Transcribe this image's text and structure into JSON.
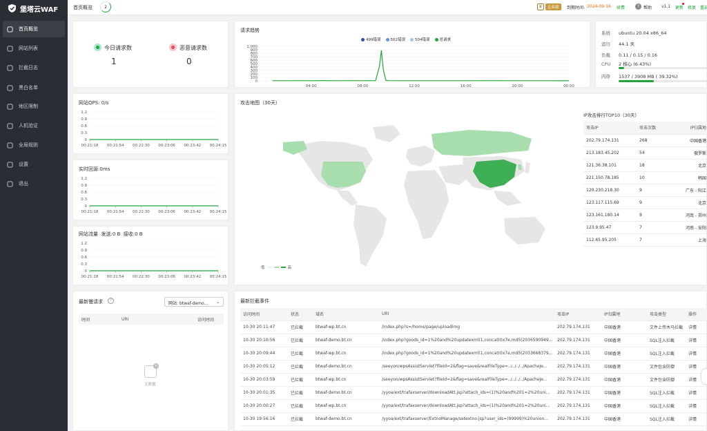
{
  "app": {
    "name": "堡塔云WAF"
  },
  "sidebar": {
    "items": [
      {
        "label": "首页概览",
        "icon": "home-icon"
      },
      {
        "label": "网站列表",
        "icon": "globe-icon"
      },
      {
        "label": "拦截日志",
        "icon": "log-icon"
      },
      {
        "label": "黑白名单",
        "icon": "user-icon"
      },
      {
        "label": "地区限制",
        "icon": "region-icon"
      },
      {
        "label": "人机验证",
        "icon": "captcha-icon"
      },
      {
        "label": "全局规则",
        "icon": "rules-icon"
      },
      {
        "label": "设置",
        "icon": "gear-icon"
      },
      {
        "label": "退出",
        "icon": "logout-icon"
      }
    ]
  },
  "topbar": {
    "page_title": "首页概览",
    "loader_value": "2",
    "edition": "企业版",
    "expire_label": "到期时间:",
    "expire_date": "2024-09-16",
    "renew": "续费",
    "help": "帮助",
    "version": "v1.1",
    "update": "更新",
    "repair": "修复",
    "restart": "重启"
  },
  "requests": {
    "today_label": "今日请求数",
    "today_value": "1",
    "malicious_label": "恶意请求数",
    "malicious_value": "0"
  },
  "trend": {
    "title": "请求趋势",
    "legend": [
      {
        "name": "499错误",
        "color": "#2f4ba8"
      },
      {
        "name": "502错误",
        "color": "#5b8ff9"
      },
      {
        "name": "504错误",
        "color": "#9fc3f0"
      },
      {
        "name": "总请求",
        "color": "#20a53a"
      }
    ]
  },
  "system": {
    "os_label": "系统",
    "os": "ubuntu 20.04 x86_64",
    "uptime_label": "运行",
    "uptime": "44.1 天",
    "load_label": "负载",
    "load": "0.11 / 0.15 / 0.16",
    "cpu_label": "CPU",
    "cpu": "2 核心 (6.43%)",
    "cpu_percent": 6.43,
    "mem_label": "内存",
    "mem": "1537 / 3908 MB ( 39.32%)",
    "mem_percent": 39.32
  },
  "qps": {
    "title": "网站QPS:",
    "value": "0/s"
  },
  "response": {
    "title": "实时回源:",
    "value": "0ms"
  },
  "traffic": {
    "title": "网站流量",
    "send_label": "发送:",
    "send": "0 B",
    "recv_label": "接收:",
    "recv": "0 B"
  },
  "mini_axis": {
    "y_ticks": [
      "1.2",
      "0.9",
      "0.6",
      "0.3",
      "0"
    ],
    "x_ticks": [
      "00:21:18",
      "00:21:54",
      "00:22:30",
      "00:23:06",
      "00:23:42",
      "00:24:15"
    ]
  },
  "attack_map": {
    "title": "攻击地图（30天）",
    "legend_low": "低",
    "legend_high": "高",
    "top_title": "IP攻击排行TOP10（30天）",
    "columns": [
      "攻击IP",
      "攻击次数",
      "IP归属地"
    ],
    "rows": [
      [
        "202.79.174.131",
        "268",
        "中国香港"
      ],
      [
        "213.183.45.202",
        "54",
        "俄罗斯"
      ],
      [
        "121.36.38.101",
        "18",
        "北京"
      ],
      [
        "221.150.78.185",
        "10",
        "韩国"
      ],
      [
        "120.230.218.30",
        "9",
        "广东 - 阳江"
      ],
      [
        "123.117.115.69",
        "9",
        "北京"
      ],
      [
        "123.161.180.14",
        "9",
        "河南 - 郑州"
      ],
      [
        "123.9.95.47",
        "7",
        "河南 - 安阳"
      ],
      [
        "112.65.95.205",
        "7",
        "上海"
      ]
    ]
  },
  "slow": {
    "title": "最新慢请求",
    "site_label": "网站:",
    "site_value": "btwaf-demo...",
    "columns": [
      "时间",
      "URI",
      "访问时间"
    ],
    "empty": "无数据"
  },
  "events": {
    "title": "最新拦截事件",
    "columns": [
      "访问时间",
      "状态",
      "域名",
      "URI",
      "攻击IP",
      "IP归属地",
      "攻击类型",
      "操作"
    ],
    "rows": [
      [
        "10-30 20:11:47",
        "已拦截",
        "btwaf-wp.bt.cn",
        "/index.php?s=/home/page/uploadImg",
        "202.79.174.131",
        "中国香港",
        "文件上传木马拦截",
        "详情"
      ],
      [
        "10-30 20:10:56",
        "已拦截",
        "btwaf-demo.bt.cn",
        "/index.php?goods_id=1%20and%20updatexml(1,concat(0x7e,md5(2036590949...",
        "202.79.174.131",
        "中国香港",
        "SQL注入拦截",
        "详情"
      ],
      [
        "10-30 20:09:44",
        "已拦截",
        "btwaf-wp.bt.cn",
        "/index.php?goods_id=1%20and%20updatexml(1,concat(0x7e,md5(2033668379...",
        "202.79.174.131",
        "中国香港",
        "SQL注入拦截",
        "详情"
      ],
      [
        "10-30 20:05:12",
        "已拦截",
        "btwaf-demo.bt.cn",
        "/seeyon/wpsAssistServlet?fileId=2&flag=save&realFileType=../../../../ApacheJe...",
        "202.79.174.131",
        "中国香港",
        "文件包含防御",
        "详情"
      ],
      [
        "10-30 20:03:59",
        "已拦截",
        "btwaf-wp.bt.cn",
        "/seeyon/wpsAssistServlet?fileId=2&flag=save&realFileType=../../../../ApacheJe...",
        "202.79.174.131",
        "中国香港",
        "文件包含防御",
        "详情"
      ],
      [
        "10-30 20:01:35",
        "已拦截",
        "btwaf-demo.bt.cn",
        "/yyoa/ext/trafaxserver/downloadAtt.jsp?attach_ids=(1)%20and%201=2%20uni...",
        "202.79.174.131",
        "中国香港",
        "SQL注入拦截",
        "详情"
      ],
      [
        "10-30 20:00:27",
        "已拦截",
        "btwaf-wp.bt.cn",
        "/yyoa/ext/trafaxserver/downloadAtt.jsp?attach_ids=(1)%20and%201=2%20uni...",
        "202.79.174.131",
        "中国香港",
        "SQL注入拦截",
        "详情"
      ],
      [
        "10-30 19:56:16",
        "已拦截",
        "btwaf-demo.bt.cn",
        "/yyoa/ext/trafaxserver/ExtnoManage/setextno.jsp?user_ids=(99999)%20union...",
        "202.79.174.131",
        "中国香港",
        "SQL注入拦截",
        "详情"
      ]
    ]
  },
  "chart_data": [
    {
      "type": "line",
      "title": "请求趋势",
      "x_ticks": [
        "04:00",
        "08:00",
        "12:00",
        "16:00",
        "20:00",
        "00:00"
      ],
      "y_ticks": [
        0,
        100,
        200,
        300,
        400,
        500,
        600,
        700,
        800,
        900,
        "1,000"
      ],
      "ylim": [
        0,
        1000
      ],
      "series": [
        {
          "name": "总请求",
          "x_hour": [
            1,
            2,
            3,
            4,
            5,
            6,
            7,
            8,
            9,
            9.3,
            9.45,
            9.6,
            9.8,
            10,
            11,
            12,
            14,
            16,
            18,
            20,
            22,
            24
          ],
          "values": [
            5,
            4,
            6,
            5,
            7,
            5,
            6,
            5,
            8,
            420,
            880,
            320,
            12,
            6,
            5,
            4,
            5,
            4,
            6,
            5,
            4,
            3
          ]
        }
      ]
    },
    {
      "type": "line",
      "title": "网站QPS:",
      "x": [
        "00:21:18",
        "00:21:54",
        "00:22:30",
        "00:23:06",
        "00:23:42",
        "00:24:15"
      ],
      "ylim": [
        0,
        1.2
      ],
      "series": [
        {
          "values": [
            0,
            0,
            0,
            0,
            0,
            0
          ]
        }
      ]
    },
    {
      "type": "line",
      "title": "实时回源:",
      "x": [
        "00:21:18",
        "00:21:54",
        "00:22:30",
        "00:23:06",
        "00:23:42",
        "00:24:15"
      ],
      "ylim": [
        0,
        1.2
      ],
      "series": [
        {
          "values": [
            0,
            0,
            0,
            0,
            0,
            0
          ]
        }
      ]
    },
    {
      "type": "line",
      "title": "网站流量",
      "x": [
        "00:21:18",
        "00:21:54",
        "00:22:30",
        "00:23:06",
        "00:23:42",
        "00:24:15"
      ],
      "ylim": [
        0,
        1.2
      ],
      "series": [
        {
          "values": [
            0,
            0,
            0,
            0,
            0,
            0
          ]
        }
      ]
    }
  ]
}
